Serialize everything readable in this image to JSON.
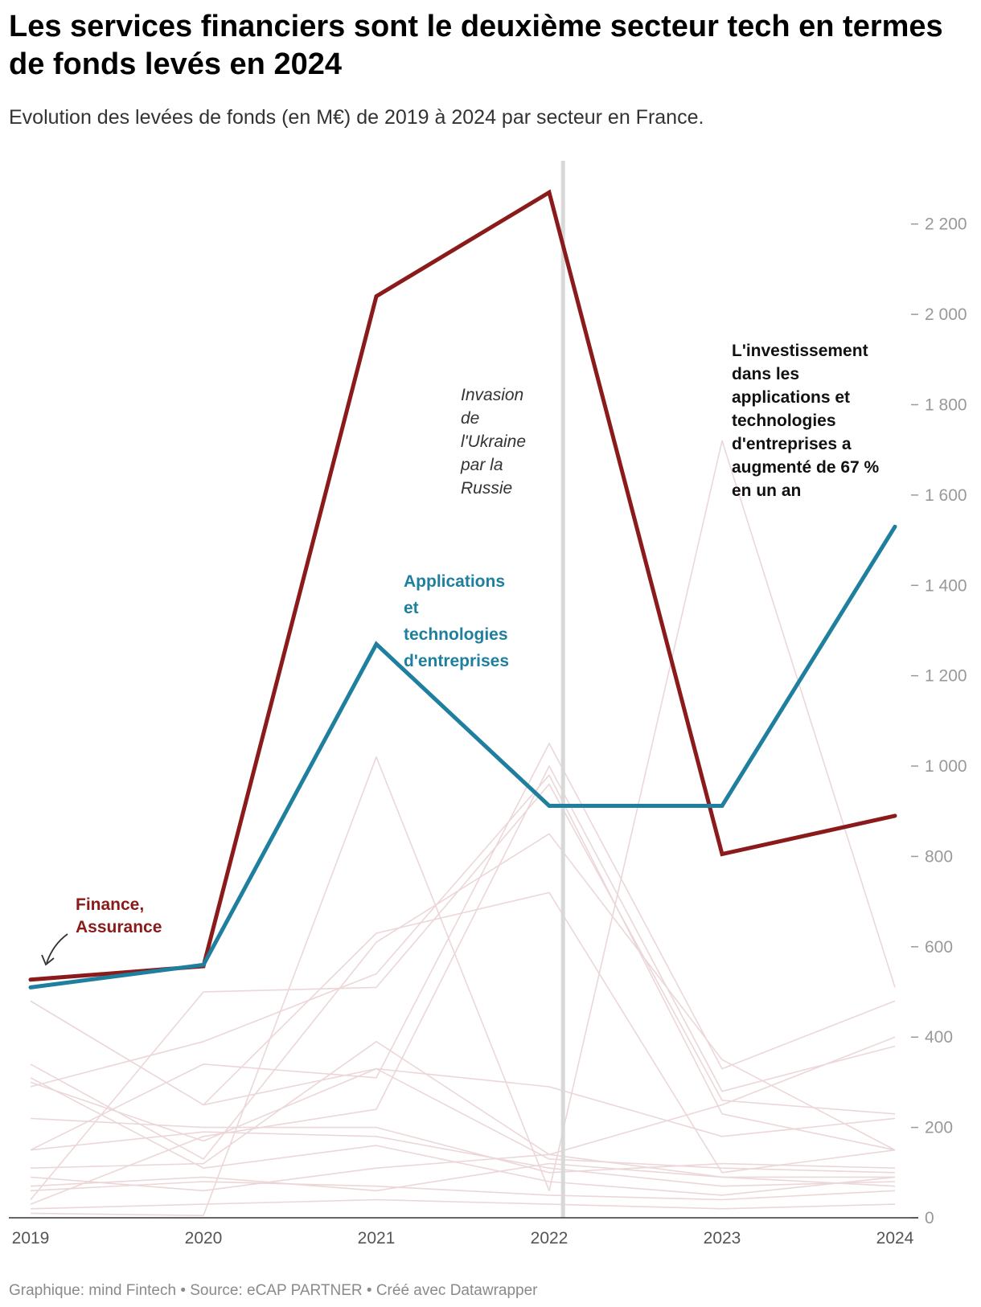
{
  "header": {
    "title": "Les services financiers sont le deuxième secteur tech en termes de fonds levés en 2024",
    "subtitle": "Evolution des levées de fonds (en M€) de 2019 à 2024 par secteur en France."
  },
  "footer": {
    "credit": "Graphique: mind Fintech • Source: eCAP PARTNER • Créé avec Datawrapper"
  },
  "colors": {
    "finance": "#8b1a1a",
    "applications": "#1f7f9e",
    "background_series": "#ecd7d8",
    "event_line": "#d8d8d8",
    "axis": "#333333"
  },
  "chart_data": {
    "type": "line",
    "x": [
      2019,
      2020,
      2021,
      2022,
      2023,
      2024
    ],
    "x_tick_labels": [
      "2019",
      "2020",
      "2021",
      "2022",
      "2023",
      "2024"
    ],
    "y_ticks": [
      0,
      200,
      400,
      600,
      800,
      1000,
      1200,
      1400,
      1600,
      1800,
      2000,
      2200
    ],
    "y_tick_labels": [
      "0",
      "200",
      "400",
      "600",
      "800",
      "1 000",
      "1 200",
      "1 400",
      "1 600",
      "1 800",
      "2 000",
      "2 200"
    ],
    "ylim": [
      0,
      2300
    ],
    "y_axis_position": "right",
    "grid": false,
    "legend": "none (direct labels)",
    "series": [
      {
        "name": "Finance, Assurance",
        "role": "highlight",
        "color": "#8b1a1a",
        "values": [
          527,
          557,
          2040,
          2270,
          805,
          890
        ]
      },
      {
        "name": "Applications et technologies d'entreprises",
        "role": "highlight",
        "color": "#1f7f9e",
        "values": [
          510,
          560,
          1270,
          912,
          912,
          1530
        ]
      },
      {
        "role": "background",
        "values": [
          10,
          5,
          1020,
          60,
          1720,
          510
        ]
      },
      {
        "role": "background",
        "values": [
          150,
          340,
          310,
          1050,
          330,
          480
        ]
      },
      {
        "role": "background",
        "values": [
          30,
          180,
          240,
          1000,
          280,
          380
        ]
      },
      {
        "role": "background",
        "values": [
          480,
          250,
          630,
          720,
          100,
          150
        ]
      },
      {
        "role": "background",
        "values": [
          290,
          390,
          540,
          980,
          230,
          150
        ]
      },
      {
        "role": "background",
        "values": [
          110,
          120,
          390,
          140,
          250,
          400
        ]
      },
      {
        "role": "background",
        "values": [
          340,
          130,
          610,
          850,
          350,
          150
        ]
      },
      {
        "role": "background",
        "values": [
          40,
          500,
          510,
          960,
          260,
          230
        ]
      },
      {
        "role": "background",
        "values": [
          300,
          170,
          330,
          290,
          180,
          220
        ]
      },
      {
        "role": "background",
        "values": [
          220,
          200,
          200,
          100,
          120,
          110
        ]
      },
      {
        "role": "background",
        "values": [
          90,
          60,
          110,
          140,
          90,
          70
        ]
      },
      {
        "role": "background",
        "values": [
          60,
          80,
          70,
          50,
          40,
          60
        ]
      },
      {
        "role": "background",
        "values": [
          20,
          30,
          40,
          30,
          20,
          30
        ]
      },
      {
        "role": "background",
        "values": [
          150,
          190,
          180,
          110,
          70,
          80
        ]
      },
      {
        "role": "background",
        "values": [
          480,
          250,
          330,
          130,
          110,
          100
        ]
      },
      {
        "role": "background",
        "values": [
          310,
          110,
          160,
          80,
          50,
          90
        ]
      },
      {
        "role": "background",
        "values": [
          70,
          90,
          60,
          120,
          90,
          90
        ]
      }
    ],
    "annotations": [
      {
        "kind": "event",
        "x": 2022.08,
        "text_lines": [
          "Invasion",
          "de",
          "l'Ukraine",
          "par la",
          "Russie"
        ]
      },
      {
        "kind": "series-label",
        "series": "Finance, Assurance",
        "text_lines": [
          "Finance,",
          "Assurance"
        ]
      },
      {
        "kind": "series-label",
        "series": "Applications et technologies d'entreprises",
        "text_lines": [
          "Applications",
          "et",
          "technologies",
          "d'entreprises"
        ]
      },
      {
        "kind": "note",
        "text_lines": [
          "L'investissement",
          "dans les",
          "applications et",
          "technologies",
          "d'entreprises a",
          "augmenté de 67 %",
          "en un an"
        ]
      }
    ]
  }
}
